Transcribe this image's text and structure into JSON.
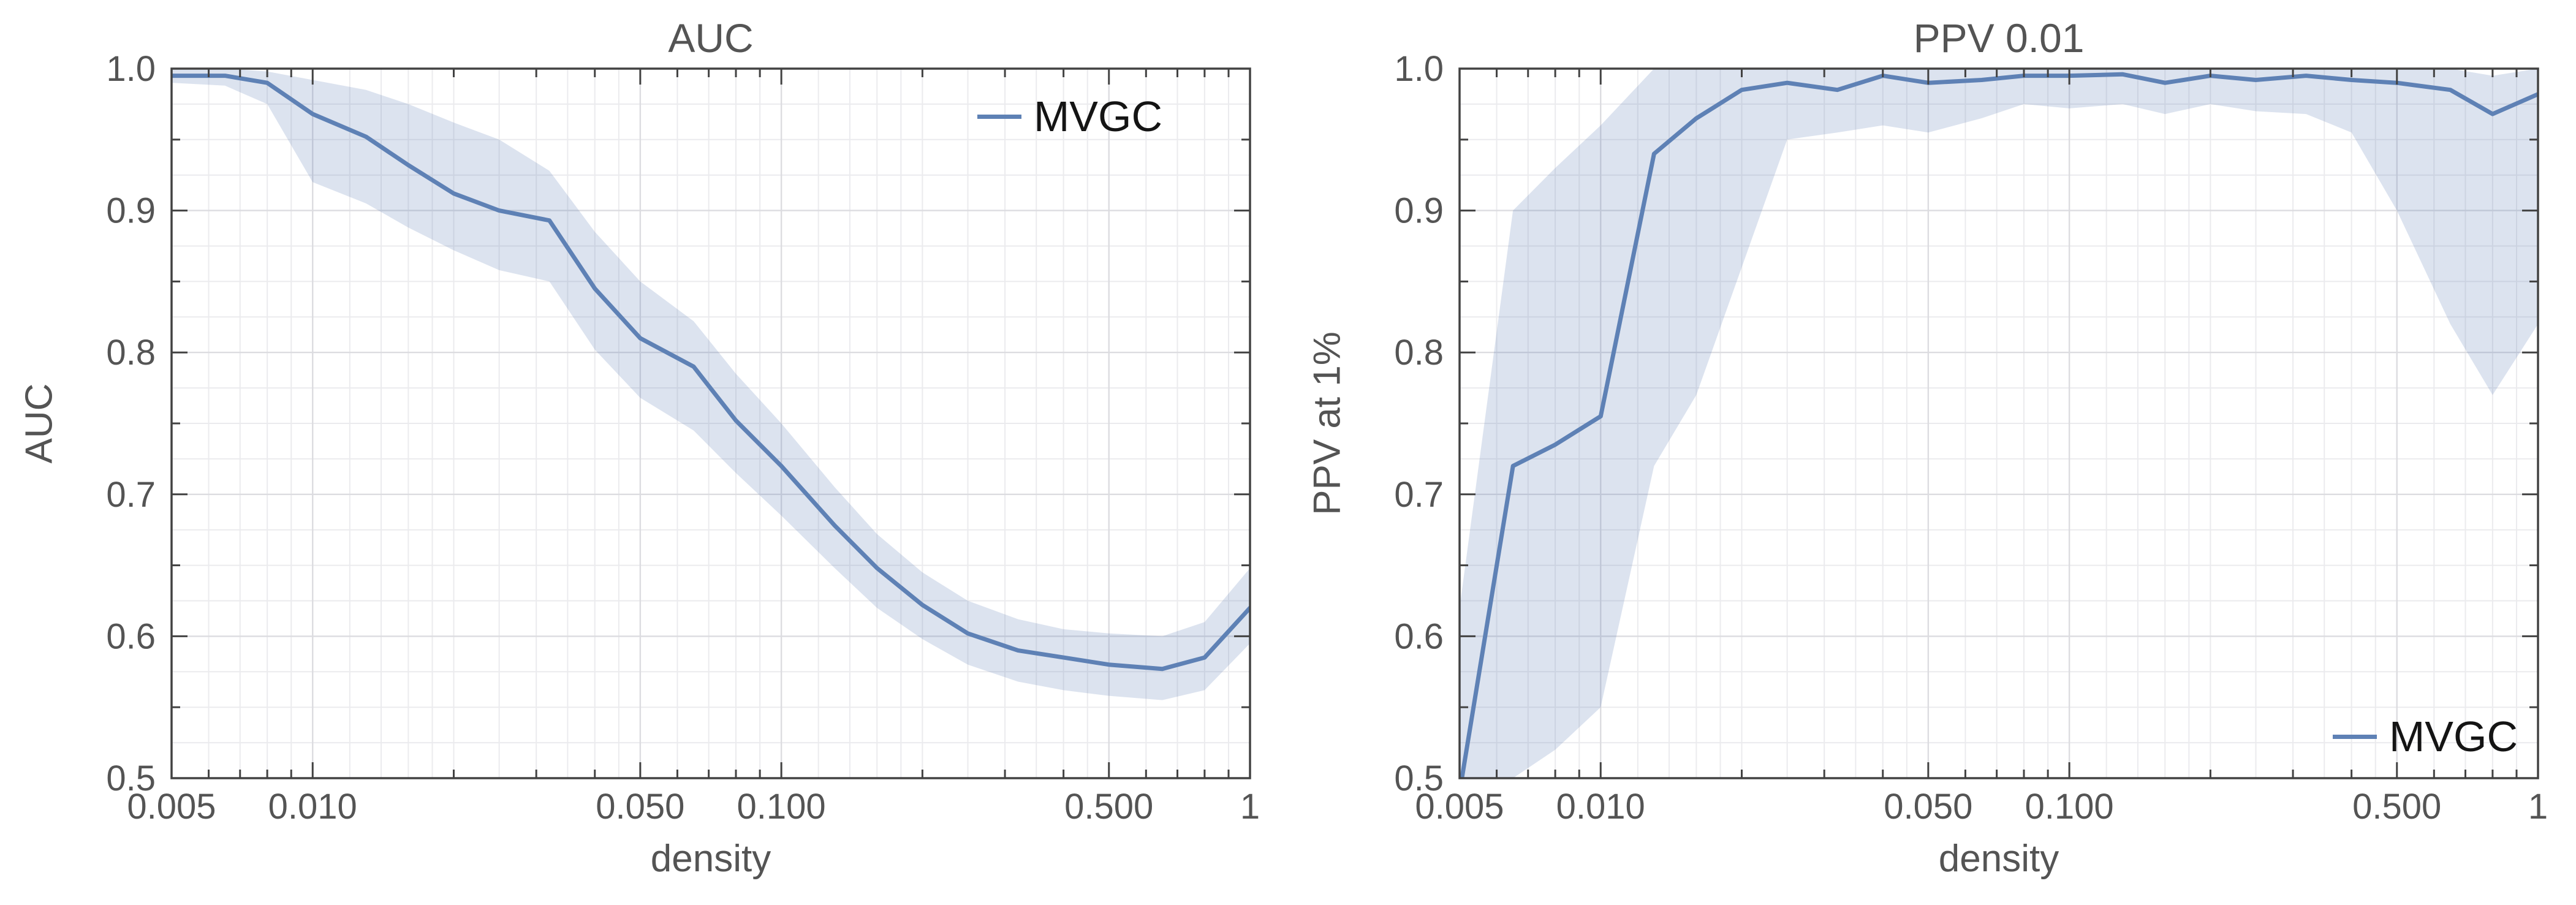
{
  "page": {
    "background": "#ffffff"
  },
  "chart_data": [
    {
      "type": "line",
      "title": "AUC",
      "xlabel": "density",
      "ylabel": "AUC",
      "xscale": "log",
      "xlim": [
        0.005,
        1
      ],
      "ylim": [
        0.5,
        1.0
      ],
      "grid": true,
      "x_ticks": [
        {
          "v": 0.005,
          "label": "0.005"
        },
        {
          "v": 0.01,
          "label": "0.010"
        },
        {
          "v": 0.05,
          "label": "0.050"
        },
        {
          "v": 0.1,
          "label": "0.100"
        },
        {
          "v": 0.5,
          "label": "0.500"
        },
        {
          "v": 1,
          "label": "1"
        }
      ],
      "y_ticks": [
        {
          "v": 0.5,
          "label": "0.5"
        },
        {
          "v": 0.6,
          "label": "0.6"
        },
        {
          "v": 0.7,
          "label": "0.7"
        },
        {
          "v": 0.8,
          "label": "0.8"
        },
        {
          "v": 0.9,
          "label": "0.9"
        },
        {
          "v": 1.0,
          "label": "1.0"
        }
      ],
      "legend": {
        "label": "MVGC",
        "position": "top-right"
      },
      "series": [
        {
          "name": "MVGC",
          "color": "#5e81b5",
          "band_color": "#5e81b5",
          "band_opacity": 0.22,
          "x": [
            0.005,
            0.0065,
            0.008,
            0.01,
            0.013,
            0.016,
            0.02,
            0.025,
            0.032,
            0.04,
            0.05,
            0.065,
            0.08,
            0.1,
            0.13,
            0.16,
            0.2,
            0.25,
            0.32,
            0.4,
            0.5,
            0.65,
            0.8,
            1.0
          ],
          "y": [
            0.995,
            0.995,
            0.99,
            0.968,
            0.952,
            0.932,
            0.912,
            0.9,
            0.893,
            0.845,
            0.81,
            0.79,
            0.752,
            0.72,
            0.678,
            0.648,
            0.622,
            0.602,
            0.59,
            0.585,
            0.58,
            0.577,
            0.585,
            0.62
          ],
          "band_upper": [
            1.0,
            1.0,
            0.998,
            0.992,
            0.985,
            0.975,
            0.962,
            0.95,
            0.928,
            0.885,
            0.85,
            0.822,
            0.785,
            0.75,
            0.705,
            0.672,
            0.645,
            0.625,
            0.612,
            0.605,
            0.602,
            0.6,
            0.61,
            0.648
          ],
          "band_lower": [
            0.99,
            0.988,
            0.975,
            0.92,
            0.905,
            0.888,
            0.872,
            0.858,
            0.85,
            0.802,
            0.768,
            0.745,
            0.715,
            0.685,
            0.648,
            0.62,
            0.598,
            0.58,
            0.568,
            0.562,
            0.558,
            0.555,
            0.562,
            0.595
          ]
        }
      ]
    },
    {
      "type": "line",
      "title": "PPV 0.01",
      "xlabel": "density",
      "ylabel": "PPV at 1%",
      "xscale": "log",
      "xlim": [
        0.005,
        1
      ],
      "ylim": [
        0.5,
        1.0
      ],
      "grid": true,
      "x_ticks": [
        {
          "v": 0.005,
          "label": "0.005"
        },
        {
          "v": 0.01,
          "label": "0.010"
        },
        {
          "v": 0.05,
          "label": "0.050"
        },
        {
          "v": 0.1,
          "label": "0.100"
        },
        {
          "v": 0.5,
          "label": "0.500"
        },
        {
          "v": 1,
          "label": "1"
        }
      ],
      "y_ticks": [
        {
          "v": 0.5,
          "label": "0.5"
        },
        {
          "v": 0.6,
          "label": "0.6"
        },
        {
          "v": 0.7,
          "label": "0.7"
        },
        {
          "v": 0.8,
          "label": "0.8"
        },
        {
          "v": 0.9,
          "label": "0.9"
        },
        {
          "v": 1.0,
          "label": "1.0"
        }
      ],
      "legend": {
        "label": "MVGC",
        "position": "bottom-right"
      },
      "series": [
        {
          "name": "MVGC",
          "color": "#5e81b5",
          "band_color": "#5e81b5",
          "band_opacity": 0.22,
          "x": [
            0.005,
            0.0065,
            0.008,
            0.01,
            0.013,
            0.016,
            0.02,
            0.025,
            0.032,
            0.04,
            0.05,
            0.065,
            0.08,
            0.1,
            0.13,
            0.16,
            0.2,
            0.25,
            0.32,
            0.4,
            0.5,
            0.65,
            0.8,
            1.0
          ],
          "y": [
            0.49,
            0.72,
            0.735,
            0.755,
            0.94,
            0.965,
            0.985,
            0.99,
            0.985,
            0.995,
            0.99,
            0.992,
            0.995,
            0.995,
            0.996,
            0.99,
            0.995,
            0.992,
            0.995,
            0.992,
            0.99,
            0.985,
            0.968,
            0.982
          ],
          "band_upper": [
            0.62,
            0.9,
            0.93,
            0.96,
            1.0,
            1.0,
            1.0,
            1.0,
            1.0,
            1.0,
            1.0,
            1.0,
            1.0,
            1.0,
            1.0,
            1.0,
            1.0,
            1.0,
            1.0,
            1.0,
            1.0,
            1.0,
            0.995,
            1.0
          ],
          "band_lower": [
            0.43,
            0.5,
            0.52,
            0.55,
            0.72,
            0.77,
            0.86,
            0.95,
            0.955,
            0.96,
            0.955,
            0.965,
            0.975,
            0.972,
            0.975,
            0.968,
            0.975,
            0.97,
            0.968,
            0.955,
            0.9,
            0.82,
            0.77,
            0.82
          ]
        }
      ]
    }
  ]
}
